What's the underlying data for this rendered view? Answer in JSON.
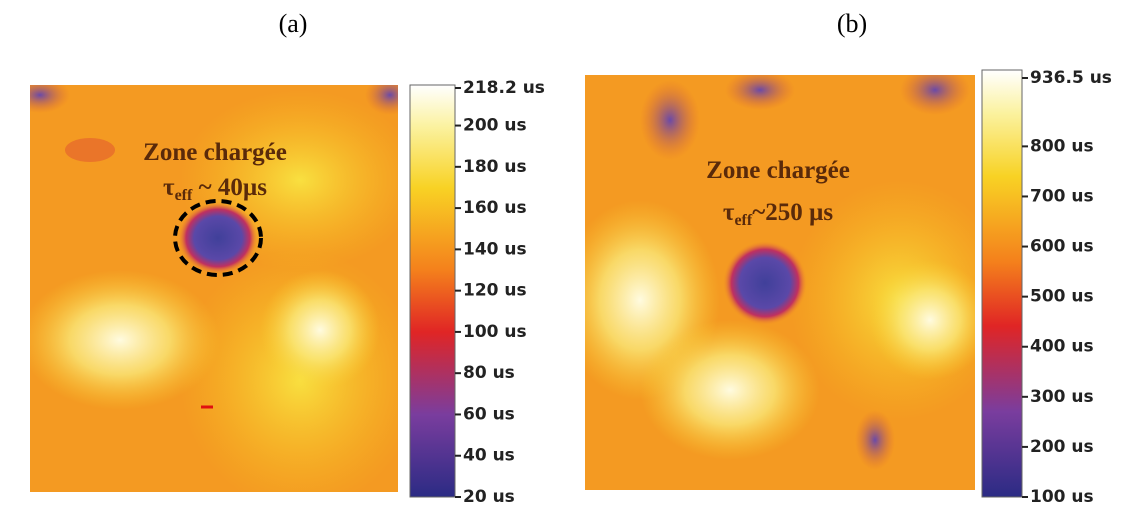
{
  "panels": [
    {
      "label": "(a)",
      "annotation": {
        "title": "Zone chargée",
        "symbol": "τ",
        "subscript": "eff",
        "value": " ~ 40µs"
      },
      "colorbar": {
        "ticks": [
          {
            "value": 218.2,
            "label": "218.2 us"
          },
          {
            "value": 200,
            "label": "200 us"
          },
          {
            "value": 180,
            "label": "180 us"
          },
          {
            "value": 160,
            "label": "160 us"
          },
          {
            "value": 140,
            "label": "140 us"
          },
          {
            "value": 120,
            "label": "120 us"
          },
          {
            "value": 100,
            "label": "100 us"
          },
          {
            "value": 80,
            "label": "80 us"
          },
          {
            "value": 60,
            "label": "60 us"
          },
          {
            "value": 40,
            "label": "40 us"
          },
          {
            "value": 20,
            "label": "20 us"
          }
        ]
      }
    },
    {
      "label": "(b)",
      "annotation": {
        "title": "Zone chargée",
        "symbol": "τ",
        "subscript": "eff",
        "value": "~250 µs"
      },
      "colorbar": {
        "ticks": [
          {
            "value": 936.5,
            "label": "936.5 us"
          },
          {
            "value": 800,
            "label": "800 us"
          },
          {
            "value": 700,
            "label": "700 us"
          },
          {
            "value": 600,
            "label": "600 us"
          },
          {
            "value": 500,
            "label": "500 us"
          },
          {
            "value": 400,
            "label": "400 us"
          },
          {
            "value": 300,
            "label": "300 us"
          },
          {
            "value": 200,
            "label": "200 us"
          },
          {
            "value": 100,
            "label": "100 us"
          }
        ]
      }
    }
  ]
}
